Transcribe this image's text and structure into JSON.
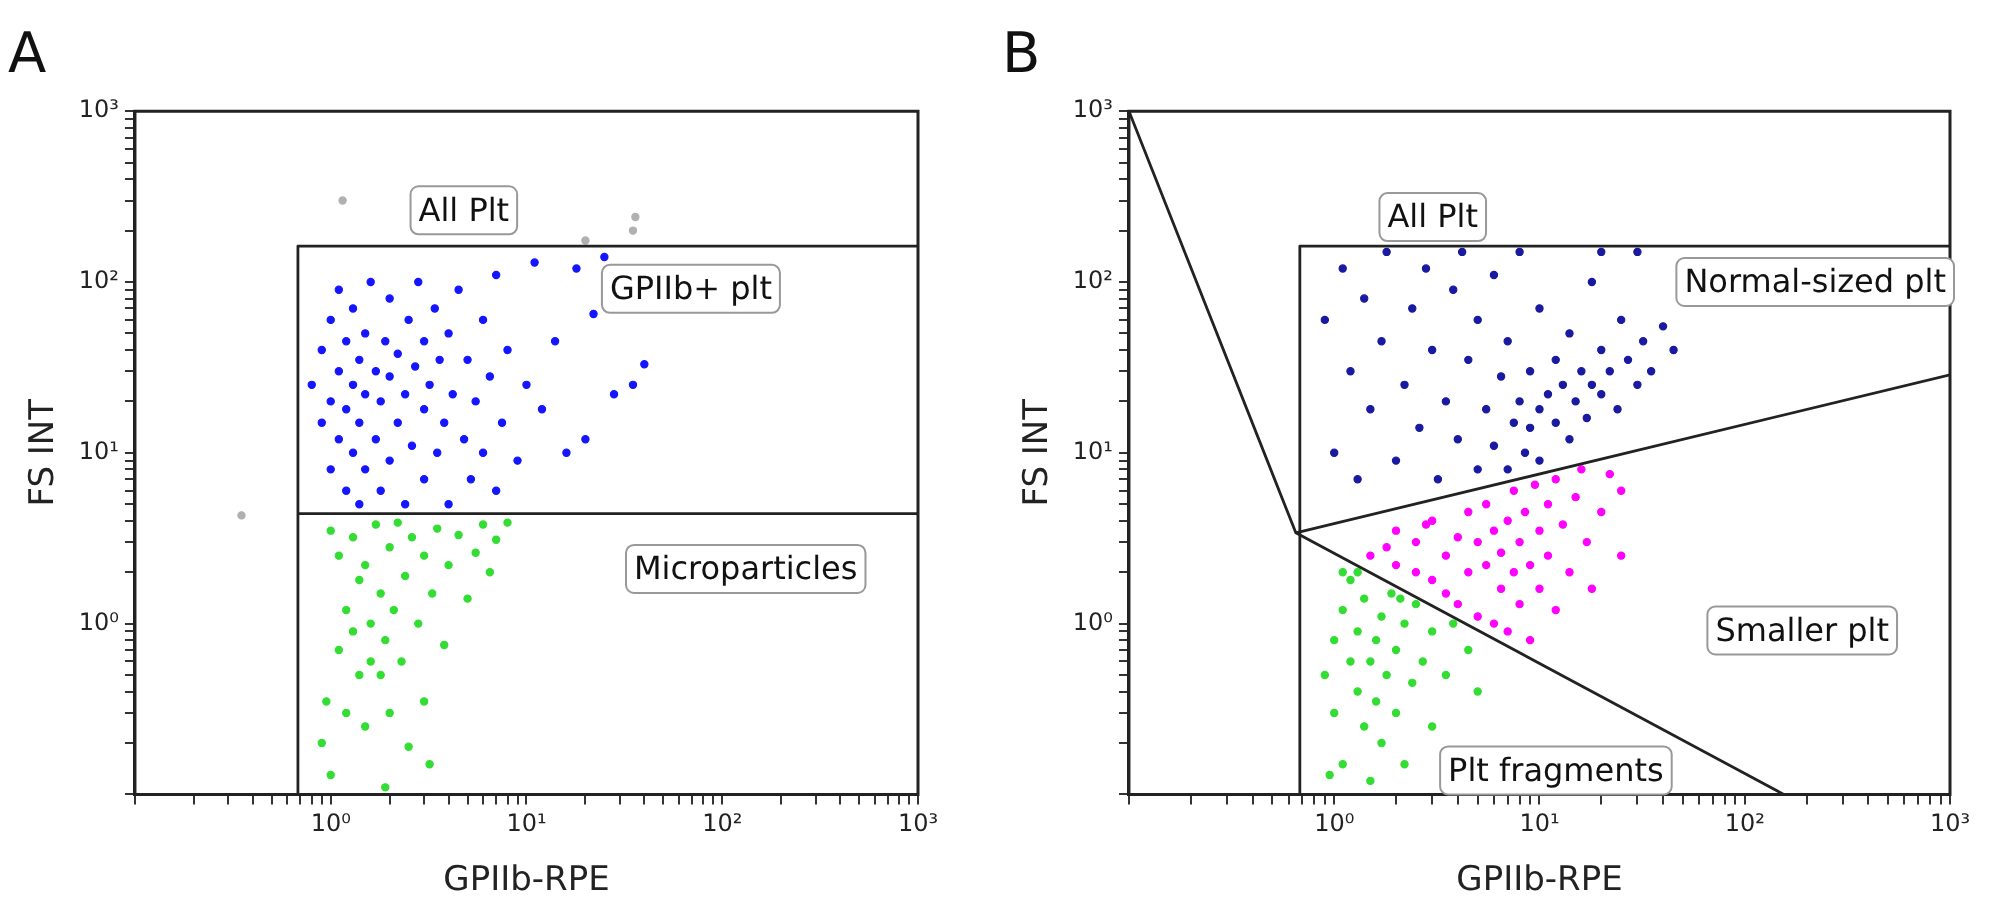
{
  "chart_data": [
    {
      "type": "scatter",
      "title": "A",
      "xlabel": "GPIIb-RPE",
      "ylabel": "FS INT",
      "log": "xy",
      "grid": false,
      "marker": "circle",
      "xlim": [
        0.1,
        1000
      ],
      "ylim": [
        0.1,
        1000
      ],
      "xticks": [
        {
          "value": 0.1,
          "label": null
        },
        {
          "value": 0.2,
          "label": null
        },
        {
          "value": 0.3,
          "label": null
        },
        {
          "value": 0.4,
          "label": null
        },
        {
          "value": 0.5,
          "label": null
        },
        {
          "value": 0.6,
          "label": null
        },
        {
          "value": 0.7,
          "label": null
        },
        {
          "value": 0.8,
          "label": null
        },
        {
          "value": 0.9,
          "label": null
        },
        {
          "value": 1,
          "label": "10⁰"
        },
        {
          "value": 2,
          "label": null
        },
        {
          "value": 3,
          "label": null
        },
        {
          "value": 4,
          "label": null
        },
        {
          "value": 5,
          "label": null
        },
        {
          "value": 6,
          "label": null
        },
        {
          "value": 7,
          "label": null
        },
        {
          "value": 8,
          "label": null
        },
        {
          "value": 9,
          "label": null
        },
        {
          "value": 10,
          "label": "10¹"
        },
        {
          "value": 20,
          "label": null
        },
        {
          "value": 30,
          "label": null
        },
        {
          "value": 40,
          "label": null
        },
        {
          "value": 50,
          "label": null
        },
        {
          "value": 60,
          "label": null
        },
        {
          "value": 70,
          "label": null
        },
        {
          "value": 80,
          "label": null
        },
        {
          "value": 90,
          "label": null
        },
        {
          "value": 100,
          "label": "10²"
        },
        {
          "value": 200,
          "label": null
        },
        {
          "value": 300,
          "label": null
        },
        {
          "value": 400,
          "label": null
        },
        {
          "value": 500,
          "label": null
        },
        {
          "value": 600,
          "label": null
        },
        {
          "value": 700,
          "label": null
        },
        {
          "value": 800,
          "label": null
        },
        {
          "value": 900,
          "label": null
        },
        {
          "value": 1000,
          "label": "10³"
        }
      ],
      "yticks": [
        {
          "value": 0.1,
          "label": null
        },
        {
          "value": 0.2,
          "label": null
        },
        {
          "value": 0.3,
          "label": null
        },
        {
          "value": 0.4,
          "label": null
        },
        {
          "value": 0.5,
          "label": null
        },
        {
          "value": 0.6,
          "label": null
        },
        {
          "value": 0.7,
          "label": null
        },
        {
          "value": 0.8,
          "label": null
        },
        {
          "value": 0.9,
          "label": null
        },
        {
          "value": 1,
          "label": "10⁰"
        },
        {
          "value": 2,
          "label": null
        },
        {
          "value": 3,
          "label": null
        },
        {
          "value": 4,
          "label": null
        },
        {
          "value": 5,
          "label": null
        },
        {
          "value": 6,
          "label": null
        },
        {
          "value": 7,
          "label": null
        },
        {
          "value": 8,
          "label": null
        },
        {
          "value": 9,
          "label": null
        },
        {
          "value": 10,
          "label": "10¹"
        },
        {
          "value": 20,
          "label": null
        },
        {
          "value": 30,
          "label": null
        },
        {
          "value": 40,
          "label": null
        },
        {
          "value": 50,
          "label": null
        },
        {
          "value": 60,
          "label": null
        },
        {
          "value": 70,
          "label": null
        },
        {
          "value": 80,
          "label": null
        },
        {
          "value": 90,
          "label": null
        },
        {
          "value": 100,
          "label": "10²"
        },
        {
          "value": 200,
          "label": null
        },
        {
          "value": 300,
          "label": null
        },
        {
          "value": 400,
          "label": null
        },
        {
          "value": 500,
          "label": null
        },
        {
          "value": 600,
          "label": null
        },
        {
          "value": 700,
          "label": null
        },
        {
          "value": 800,
          "label": null
        },
        {
          "value": 900,
          "label": null
        },
        {
          "value": 1000,
          "label": "10³"
        }
      ],
      "series": [
        {
          "color": "#1515ff",
          "x": [
            0.8,
            0.9,
            0.9,
            1.0,
            1.0,
            1.0,
            1.1,
            1.1,
            1.1,
            1.2,
            1.2,
            1.2,
            1.3,
            1.3,
            1.3,
            1.4,
            1.4,
            1.4,
            1.5,
            1.5,
            1.5,
            1.6,
            1.7,
            1.7,
            1.8,
            1.8,
            1.9,
            2.0,
            2.0,
            2.0,
            2.2,
            2.2,
            2.4,
            2.4,
            2.5,
            2.6,
            2.7,
            2.8,
            3.0,
            3.0,
            3.0,
            3.2,
            3.4,
            3.5,
            3.6,
            3.8,
            4.0,
            4.0,
            4.2,
            4.5,
            4.8,
            5.0,
            5.2,
            5.5,
            6.0,
            6.0,
            6.5,
            7.0,
            7.0,
            7.5,
            8.0,
            9.0,
            10,
            11,
            12,
            14,
            16,
            18,
            20,
            22,
            25,
            28,
            35,
            40
          ],
          "values": [
            25,
            15,
            40,
            8,
            20,
            60,
            12,
            30,
            90,
            6,
            18,
            45,
            10,
            25,
            70,
            5,
            15,
            35,
            8,
            22,
            50,
            100,
            12,
            30,
            6,
            20,
            45,
            9,
            28,
            80,
            15,
            38,
            5,
            22,
            60,
            11,
            32,
            100,
            7,
            18,
            45,
            25,
            70,
            10,
            35,
            15,
            5,
            50,
            22,
            90,
            12,
            35,
            7,
            20,
            60,
            10,
            28,
            110,
            6,
            15,
            40,
            9,
            25,
            130,
            18,
            45,
            10,
            120,
            12,
            65,
            140,
            22,
            25,
            33
          ]
        },
        {
          "color": "#33dd33",
          "x": [
            0.9,
            0.95,
            1.0,
            1.0,
            1.1,
            1.1,
            1.2,
            1.2,
            1.3,
            1.3,
            1.4,
            1.4,
            1.5,
            1.5,
            1.6,
            1.6,
            1.7,
            1.8,
            1.8,
            1.9,
            2.0,
            2.0,
            2.1,
            2.2,
            2.3,
            2.4,
            2.5,
            2.6,
            2.8,
            3.0,
            3.0,
            3.3,
            3.5,
            3.8,
            4.0,
            4.5,
            5.0,
            5.5,
            6.0,
            6.5,
            7.0,
            8.0,
            3.2,
            1.9
          ],
          "values": [
            0.2,
            0.35,
            0.13,
            3.5,
            0.7,
            2.5,
            1.2,
            0.3,
            0.9,
            3.2,
            0.5,
            1.8,
            0.25,
            2.2,
            0.6,
            1.0,
            3.8,
            0.5,
            1.5,
            0.8,
            2.8,
            0.3,
            1.2,
            3.9,
            0.6,
            1.9,
            0.19,
            3.2,
            1.0,
            2.5,
            0.35,
            1.5,
            3.6,
            0.75,
            2.2,
            3.3,
            1.4,
            2.6,
            3.8,
            2.0,
            3.1,
            3.9,
            0.15,
            0.11
          ]
        },
        {
          "color": "#b0b0b0",
          "x": [
            0.35,
            1.15,
            36,
            35,
            20
          ],
          "values": [
            4.3,
            300,
            240,
            200,
            175
          ]
        },
        {
          "type": "line",
          "marker": "none",
          "color": "#222222",
          "x": [
            0.68,
            0.68,
            1000
          ],
          "values": [
            0.1,
            162,
            162
          ]
        },
        {
          "type": "line",
          "marker": "none",
          "color": "#222222",
          "x": [
            0.68,
            1000
          ],
          "values": [
            4.4,
            4.4
          ]
        }
      ],
      "annotations": [
        "All Plt",
        "GPIIb+ plt",
        "Microparticles"
      ]
    },
    {
      "type": "scatter",
      "title": "B",
      "xlabel": "GPIIb-RPE",
      "ylabel": "FS INT",
      "log": "xy",
      "grid": false,
      "marker": "circle",
      "xlim": [
        0.1,
        1000
      ],
      "ylim": [
        0.1,
        1000
      ],
      "xticks": [
        {
          "value": 0.1,
          "label": null
        },
        {
          "value": 0.2,
          "label": null
        },
        {
          "value": 0.3,
          "label": null
        },
        {
          "value": 0.4,
          "label": null
        },
        {
          "value": 0.5,
          "label": null
        },
        {
          "value": 0.6,
          "label": null
        },
        {
          "value": 0.7,
          "label": null
        },
        {
          "value": 0.8,
          "label": null
        },
        {
          "value": 0.9,
          "label": null
        },
        {
          "value": 1,
          "label": "10⁰"
        },
        {
          "value": 2,
          "label": null
        },
        {
          "value": 3,
          "label": null
        },
        {
          "value": 4,
          "label": null
        },
        {
          "value": 5,
          "label": null
        },
        {
          "value": 6,
          "label": null
        },
        {
          "value": 7,
          "label": null
        },
        {
          "value": 8,
          "label": null
        },
        {
          "value": 9,
          "label": null
        },
        {
          "value": 10,
          "label": "10¹"
        },
        {
          "value": 20,
          "label": null
        },
        {
          "value": 30,
          "label": null
        },
        {
          "value": 40,
          "label": null
        },
        {
          "value": 50,
          "label": null
        },
        {
          "value": 60,
          "label": null
        },
        {
          "value": 70,
          "label": null
        },
        {
          "value": 80,
          "label": null
        },
        {
          "value": 90,
          "label": null
        },
        {
          "value": 100,
          "label": "10²"
        },
        {
          "value": 200,
          "label": null
        },
        {
          "value": 300,
          "label": null
        },
        {
          "value": 400,
          "label": null
        },
        {
          "value": 500,
          "label": null
        },
        {
          "value": 600,
          "label": null
        },
        {
          "value": 700,
          "label": null
        },
        {
          "value": 800,
          "label": null
        },
        {
          "value": 900,
          "label": null
        },
        {
          "value": 1000,
          "label": "10³"
        }
      ],
      "yticks": [
        {
          "value": 0.1,
          "label": null
        },
        {
          "value": 0.2,
          "label": null
        },
        {
          "value": 0.3,
          "label": null
        },
        {
          "value": 0.4,
          "label": null
        },
        {
          "value": 0.5,
          "label": null
        },
        {
          "value": 0.6,
          "label": null
        },
        {
          "value": 0.7,
          "label": null
        },
        {
          "value": 0.8,
          "label": null
        },
        {
          "value": 0.9,
          "label": null
        },
        {
          "value": 1,
          "label": "10⁰"
        },
        {
          "value": 2,
          "label": null
        },
        {
          "value": 3,
          "label": null
        },
        {
          "value": 4,
          "label": null
        },
        {
          "value": 5,
          "label": null
        },
        {
          "value": 6,
          "label": null
        },
        {
          "value": 7,
          "label": null
        },
        {
          "value": 8,
          "label": null
        },
        {
          "value": 9,
          "label": null
        },
        {
          "value": 10,
          "label": "10¹"
        },
        {
          "value": 20,
          "label": null
        },
        {
          "value": 30,
          "label": null
        },
        {
          "value": 40,
          "label": null
        },
        {
          "value": 50,
          "label": null
        },
        {
          "value": 60,
          "label": null
        },
        {
          "value": 70,
          "label": null
        },
        {
          "value": 80,
          "label": null
        },
        {
          "value": 90,
          "label": null
        },
        {
          "value": 100,
          "label": "10²"
        },
        {
          "value": 200,
          "label": null
        },
        {
          "value": 300,
          "label": null
        },
        {
          "value": 400,
          "label": null
        },
        {
          "value": 500,
          "label": null
        },
        {
          "value": 600,
          "label": null
        },
        {
          "value": 700,
          "label": null
        },
        {
          "value": 800,
          "label": null
        },
        {
          "value": 900,
          "label": null
        },
        {
          "value": 1000,
          "label": "10³"
        }
      ],
      "series": [
        {
          "color": "#1a1aa0",
          "x": [
            0.9,
            1.0,
            1.1,
            1.2,
            1.3,
            1.4,
            1.5,
            1.7,
            1.8,
            2.0,
            2.2,
            2.4,
            2.6,
            2.8,
            3.0,
            3.2,
            3.5,
            3.8,
            4.0,
            4.2,
            4.5,
            5.0,
            5.0,
            5.5,
            6.0,
            6.0,
            6.5,
            7.0,
            7.0,
            7.5,
            8.0,
            8.0,
            8.5,
            9.0,
            9.0,
            10,
            10,
            10,
            11,
            12,
            12,
            13,
            14,
            14,
            15,
            16,
            17,
            18,
            18,
            20,
            20,
            22,
            24,
            25,
            27,
            30,
            32,
            35,
            40,
            30,
            20,
            45
          ],
          "values": [
            60,
            10,
            120,
            30,
            7,
            80,
            18,
            45,
            150,
            9,
            25,
            70,
            14,
            120,
            40,
            7,
            20,
            90,
            12,
            150,
            35,
            8,
            60,
            18,
            110,
            11,
            28,
            45,
            8,
            15,
            20,
            150,
            10,
            30,
            14,
            18,
            9,
            70,
            22,
            15,
            35,
            25,
            12,
            50,
            20,
            30,
            16,
            25,
            100,
            22,
            40,
            30,
            18,
            60,
            35,
            25,
            45,
            30,
            55,
            150,
            150,
            40
          ]
        },
        {
          "color": "#ff00ff",
          "x": [
            1.5,
            2.0,
            2.0,
            2.5,
            2.5,
            3.0,
            3.0,
            3.5,
            3.5,
            4.0,
            4.0,
            4.5,
            4.5,
            5.0,
            5.0,
            5.5,
            5.5,
            6.0,
            6.0,
            6.5,
            6.5,
            7.0,
            7.0,
            7.5,
            7.5,
            8.0,
            8.0,
            8.5,
            9.0,
            9.0,
            9.5,
            10,
            10,
            11,
            11,
            12,
            12,
            13,
            14,
            15,
            16,
            17,
            18,
            20,
            22,
            25,
            25,
            2.8,
            1.8
          ],
          "values": [
            2.5,
            2.2,
            3.5,
            3.0,
            2.0,
            1.8,
            4.0,
            2.5,
            1.5,
            3.2,
            1.3,
            2.0,
            4.5,
            1.1,
            3.0,
            2.2,
            5.0,
            1.0,
            3.5,
            1.6,
            2.6,
            4.0,
            0.9,
            2.0,
            6.0,
            3.0,
            1.3,
            4.5,
            2.2,
            0.8,
            6.5,
            3.5,
            1.6,
            5.0,
            2.5,
            1.2,
            7.0,
            3.8,
            2.0,
            5.5,
            8.0,
            3.0,
            1.6,
            4.5,
            7.5,
            2.5,
            6.0,
            3.8,
            2.8
          ]
        },
        {
          "color": "#33dd33",
          "x": [
            0.9,
            1.0,
            1.0,
            1.1,
            1.1,
            1.2,
            1.2,
            1.3,
            1.3,
            1.4,
            1.4,
            1.5,
            1.5,
            1.6,
            1.6,
            1.7,
            1.7,
            1.8,
            1.9,
            2.0,
            2.0,
            2.2,
            2.2,
            2.4,
            2.5,
            2.7,
            3.0,
            3.0,
            3.5,
            3.8,
            4.5,
            5.0,
            1.3,
            1.1,
            2.1,
            0.95
          ],
          "values": [
            0.5,
            0.8,
            0.3,
            1.2,
            0.15,
            0.6,
            1.8,
            0.4,
            0.9,
            0.25,
            1.4,
            0.6,
            0.12,
            0.8,
            0.35,
            1.1,
            0.2,
            0.5,
            1.5,
            0.7,
            0.3,
            1.0,
            0.15,
            0.45,
            1.3,
            0.6,
            0.9,
            0.25,
            0.5,
            1.0,
            0.7,
            0.4,
            2.0,
            2.0,
            1.4,
            0.13
          ]
        },
        {
          "type": "line",
          "marker": "none",
          "color": "#222222",
          "x": [
            0.68,
            0.68,
            1000
          ],
          "values": [
            0.1,
            162,
            162
          ]
        },
        {
          "type": "line",
          "marker": "none",
          "color": "#222222",
          "x": [
            0.1,
            0.65,
            155
          ],
          "values": [
            1000,
            3.4,
            0.1
          ]
        },
        {
          "type": "line",
          "marker": "none",
          "color": "#222222",
          "x": [
            0.65,
            1000
          ],
          "values": [
            3.4,
            28.6
          ]
        }
      ],
      "annotations": [
        "All Plt",
        "Normal-sized plt",
        "Smaller plt",
        "Plt fragments"
      ]
    }
  ]
}
